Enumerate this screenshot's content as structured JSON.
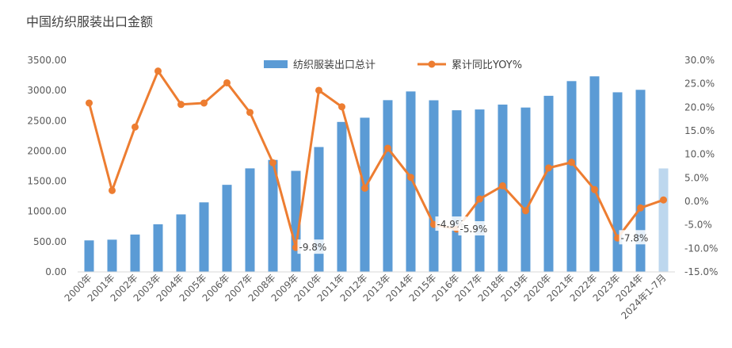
{
  "chart_data": {
    "type": "bar+line",
    "title": "中国纺织服装出口金额",
    "categories": [
      "2000年",
      "2001年",
      "2002年",
      "2003年",
      "2004年",
      "2005年",
      "2006年",
      "2007年",
      "2008年",
      "2009年",
      "2010年",
      "2011年",
      "2012年",
      "2013年",
      "2014年",
      "2015年",
      "2016年",
      "2017年",
      "2018年",
      "2019年",
      "2020年",
      "2021年",
      "2022年",
      "2023年",
      "2024年",
      "2024年1-7月"
    ],
    "series": [
      {
        "name": "纺织服装出口总计",
        "type": "bar",
        "axis": "left",
        "color": "#5b9bd5",
        "values": [
          521,
          533,
          618,
          788,
          951,
          1150,
          1440,
          1712,
          1852,
          1671,
          2065,
          2480,
          2550,
          2840,
          2984,
          2838,
          2673,
          2686,
          2767,
          2718,
          2912,
          3155,
          3234,
          2970,
          3011,
          1711
        ],
        "highlight_last_color": "#bdd7ee"
      },
      {
        "name": "累计同比YOY%",
        "type": "line",
        "axis": "right",
        "color": "#ed7d31",
        "values": [
          20.9,
          2.3,
          15.8,
          27.7,
          20.6,
          20.9,
          25.2,
          18.9,
          8.2,
          -9.8,
          23.6,
          20.1,
          2.8,
          11.3,
          5.1,
          -4.9,
          -5.9,
          0.5,
          3.3,
          -2.0,
          7.1,
          8.3,
          2.5,
          -7.8,
          -1.4,
          0.3
        ]
      }
    ],
    "y_left": {
      "min": 0,
      "max": 3500,
      "step": 500,
      "tick_labels": [
        "0.00",
        "500.00",
        "1000.00",
        "1500.00",
        "2000.00",
        "2500.00",
        "3000.00",
        "3500.00"
      ]
    },
    "y_right": {
      "min": -15,
      "max": 30,
      "step": 5,
      "tick_labels": [
        "-15.0%",
        "-10.0%",
        "-5.0%",
        "0.0%",
        "5.0%",
        "10.0%",
        "15.0%",
        "20.0%",
        "25.0%",
        "30.0%"
      ]
    },
    "data_labels": [
      {
        "index": 9,
        "text": "-9.8%"
      },
      {
        "index": 15,
        "text": "-4.9%"
      },
      {
        "index": 16,
        "text": "-5.9%"
      },
      {
        "index": 23,
        "text": "-7.8%"
      }
    ],
    "legend_position": "top",
    "grid": false
  }
}
